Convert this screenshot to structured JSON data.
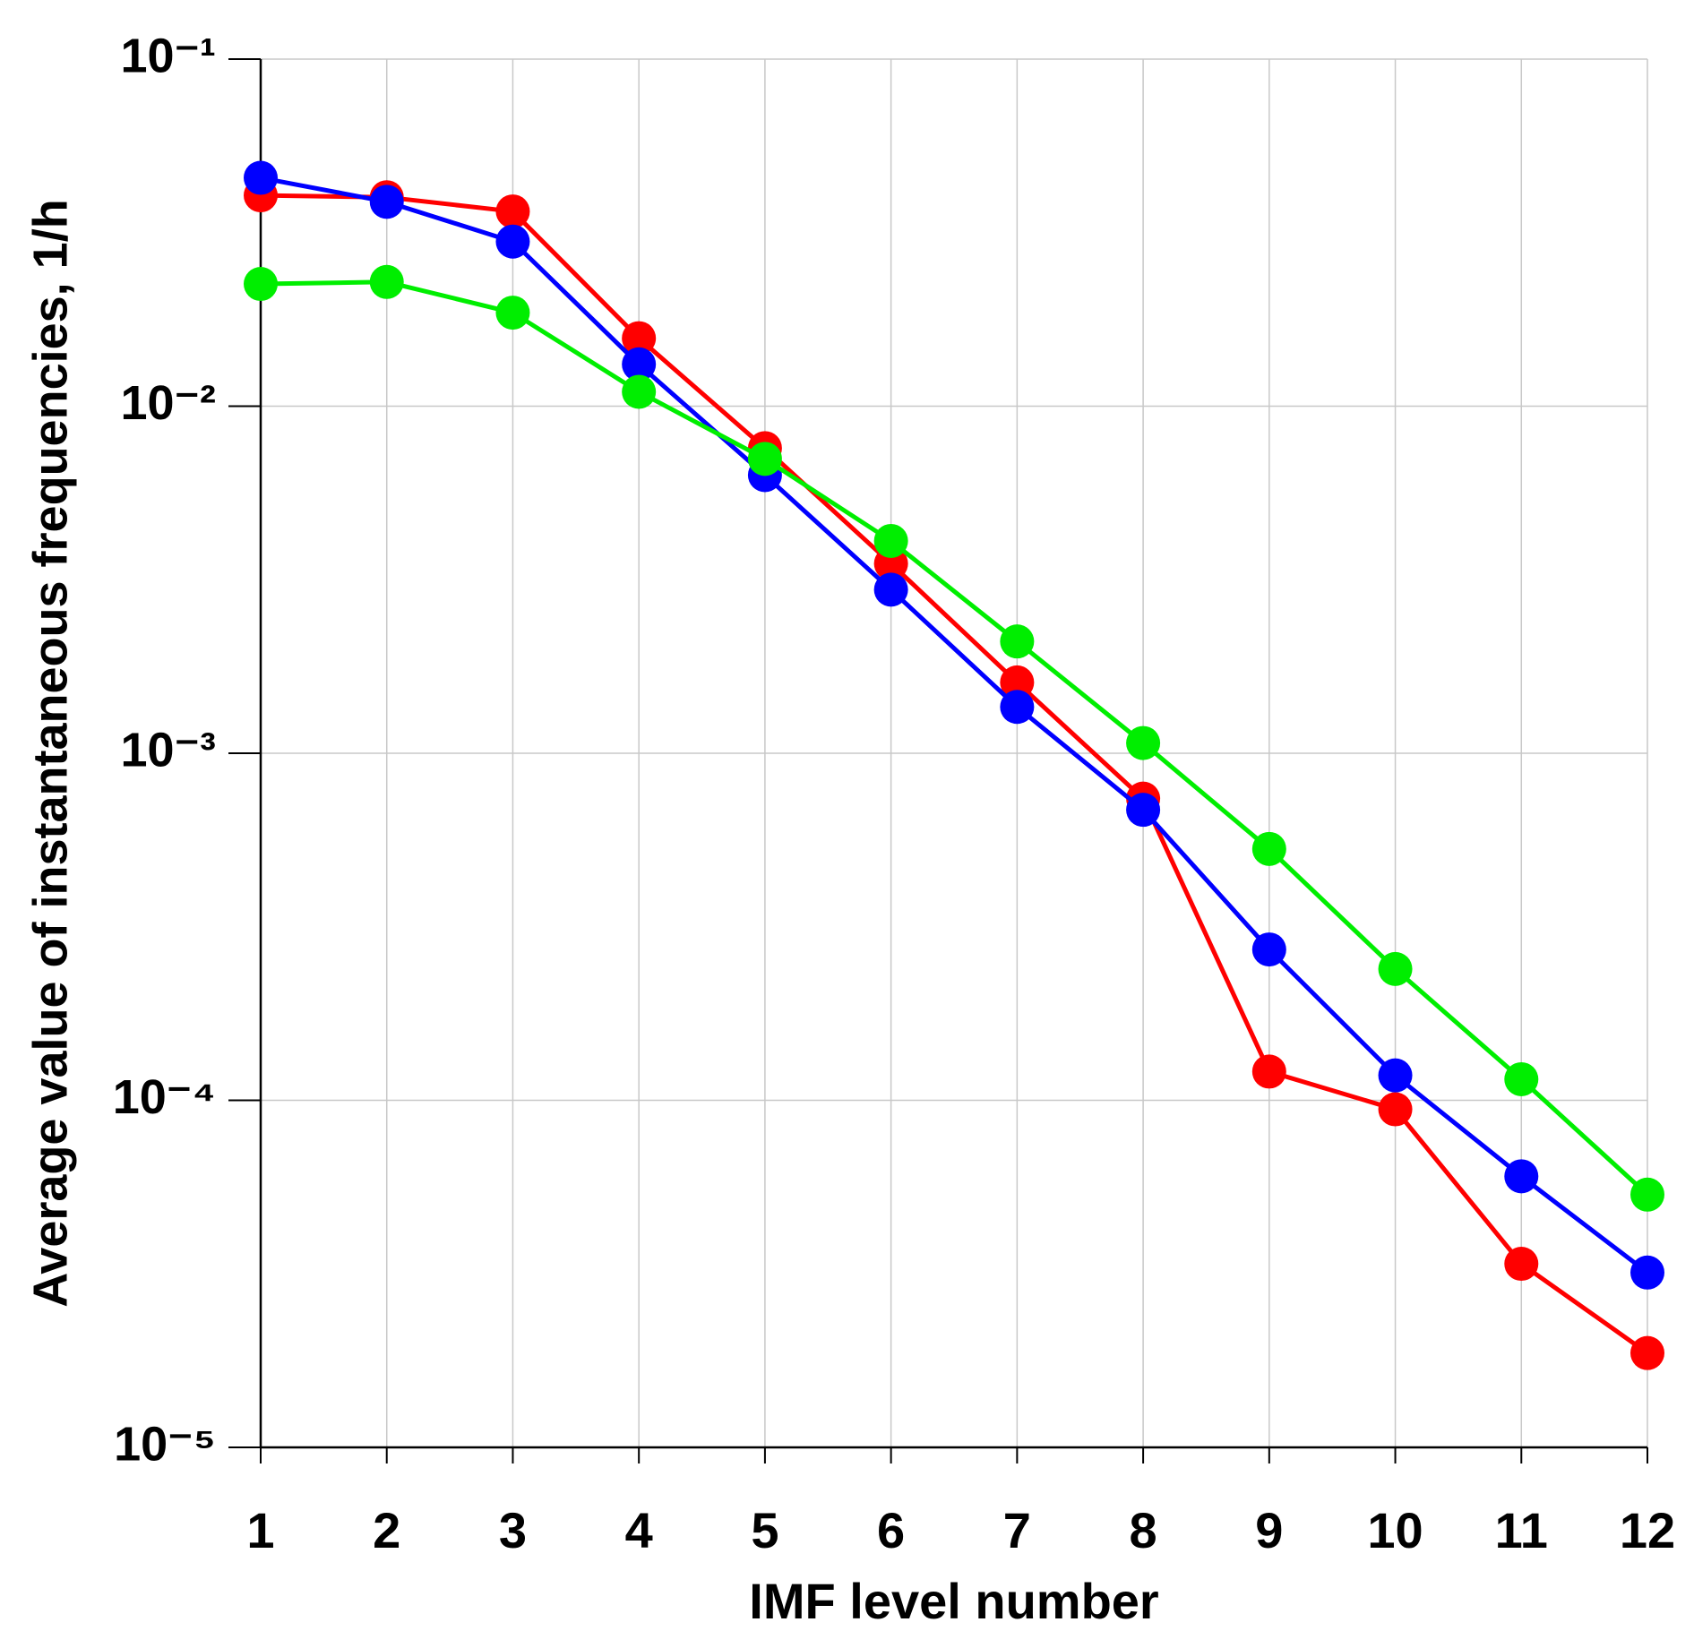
{
  "chart_data": {
    "type": "line",
    "xlabel": "IMF level number",
    "ylabel": "Average value of instantaneous frequencies, 1/h",
    "x": [
      1,
      2,
      3,
      4,
      5,
      6,
      7,
      8,
      9,
      10,
      11,
      12
    ],
    "xlim": [
      1,
      12
    ],
    "xticks": [
      1,
      2,
      3,
      4,
      5,
      6,
      7,
      8,
      9,
      10,
      11,
      12
    ],
    "ylim": [
      1e-05,
      0.1
    ],
    "yscale": "log",
    "yticks": [
      {
        "value": 1e-05,
        "label": "10⁻⁵"
      },
      {
        "value": 0.0001,
        "label": "10⁻⁴"
      },
      {
        "value": 0.001,
        "label": "10⁻³"
      },
      {
        "value": 0.01,
        "label": "10⁻²"
      },
      {
        "value": 0.1,
        "label": "10⁻¹"
      }
    ],
    "grid": true,
    "series": [
      {
        "color": "#ff0000",
        "values": [
          0.0405,
          0.04,
          0.0364,
          0.0157,
          0.00757,
          0.00352,
          0.0016,
          0.00074,
          0.000121,
          9.42e-05,
          3.38e-05,
          1.87e-05
        ]
      },
      {
        "color": "#0000ff",
        "values": [
          0.0455,
          0.0388,
          0.0298,
          0.0132,
          0.00633,
          0.00296,
          0.00136,
          0.000687,
          0.000272,
          0.000118,
          6.04e-05,
          3.19e-05
        ]
      },
      {
        "color": "#00ee00",
        "values": [
          0.0225,
          0.0228,
          0.0186,
          0.011,
          0.00705,
          0.00409,
          0.0021,
          0.00107,
          0.00053,
          0.000239,
          0.000115,
          5.35e-05
        ]
      }
    ]
  }
}
